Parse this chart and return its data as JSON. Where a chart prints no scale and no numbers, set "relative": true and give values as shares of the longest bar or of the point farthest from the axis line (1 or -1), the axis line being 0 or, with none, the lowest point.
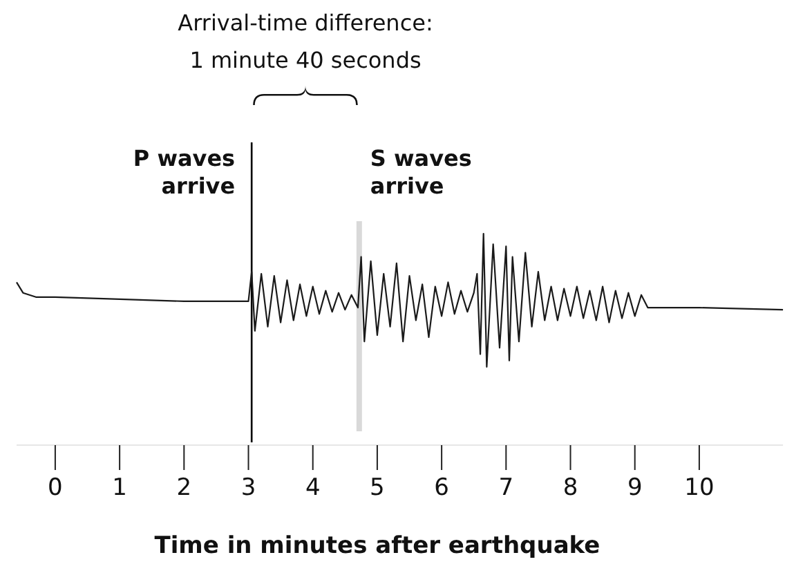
{
  "chart_data": {
    "type": "line",
    "relative": true,
    "xlabel": "Time in minutes after earthquake",
    "xlim": [
      -0.6,
      11.3
    ],
    "xticks": [
      0,
      1,
      2,
      3,
      4,
      5,
      6,
      7,
      8,
      9,
      10
    ],
    "grid": false,
    "tick_labels": "x",
    "annotations": [
      "Arrival-time difference:\n1 minute 40 seconds"
    ],
    "ref_lines": [
      {
        "axis": "x",
        "value": 3.05,
        "label": "P waves\narrive",
        "color": "#000000"
      },
      {
        "axis": "x",
        "value": 4.72,
        "label": "S waves\narrive",
        "color": "#d9d9d9"
      }
    ],
    "series": [
      {
        "color": "#1a1a1a",
        "x": [
          -0.6,
          -0.5,
          -0.3,
          0,
          1,
          2,
          3.0,
          3.05,
          3.1,
          3.2,
          3.3,
          3.4,
          3.5,
          3.6,
          3.7,
          3.8,
          3.9,
          4.0,
          4.1,
          4.2,
          4.3,
          4.4,
          4.5,
          4.6,
          4.7,
          4.75,
          4.8,
          4.9,
          5.0,
          5.1,
          5.2,
          5.3,
          5.4,
          5.5,
          5.6,
          5.7,
          5.8,
          5.9,
          6.0,
          6.1,
          6.2,
          6.3,
          6.4,
          6.5,
          6.55,
          6.6,
          6.65,
          6.7,
          6.8,
          6.9,
          7.0,
          7.05,
          7.1,
          7.2,
          7.3,
          7.4,
          7.5,
          7.6,
          7.7,
          7.8,
          7.9,
          8.0,
          8.1,
          8.2,
          8.3,
          8.4,
          8.5,
          8.6,
          8.7,
          8.8,
          8.9,
          9.0,
          9.1,
          9.2,
          9.3,
          10,
          11.3
        ],
        "values": [
          0.77,
          0.72,
          0.7,
          0.7,
          0.69,
          0.68,
          0.68,
          0.82,
          0.54,
          0.81,
          0.56,
          0.8,
          0.58,
          0.78,
          0.59,
          0.76,
          0.61,
          0.75,
          0.62,
          0.73,
          0.63,
          0.72,
          0.64,
          0.71,
          0.65,
          0.89,
          0.49,
          0.87,
          0.52,
          0.81,
          0.56,
          0.86,
          0.49,
          0.8,
          0.59,
          0.76,
          0.51,
          0.75,
          0.61,
          0.77,
          0.62,
          0.73,
          0.63,
          0.72,
          0.81,
          0.43,
          1.0,
          0.37,
          0.95,
          0.46,
          0.94,
          0.4,
          0.89,
          0.49,
          0.91,
          0.56,
          0.82,
          0.59,
          0.75,
          0.59,
          0.74,
          0.61,
          0.75,
          0.6,
          0.73,
          0.59,
          0.75,
          0.58,
          0.73,
          0.6,
          0.72,
          0.61,
          0.71,
          0.65,
          0.65,
          0.65,
          0.64
        ]
      }
    ]
  }
}
